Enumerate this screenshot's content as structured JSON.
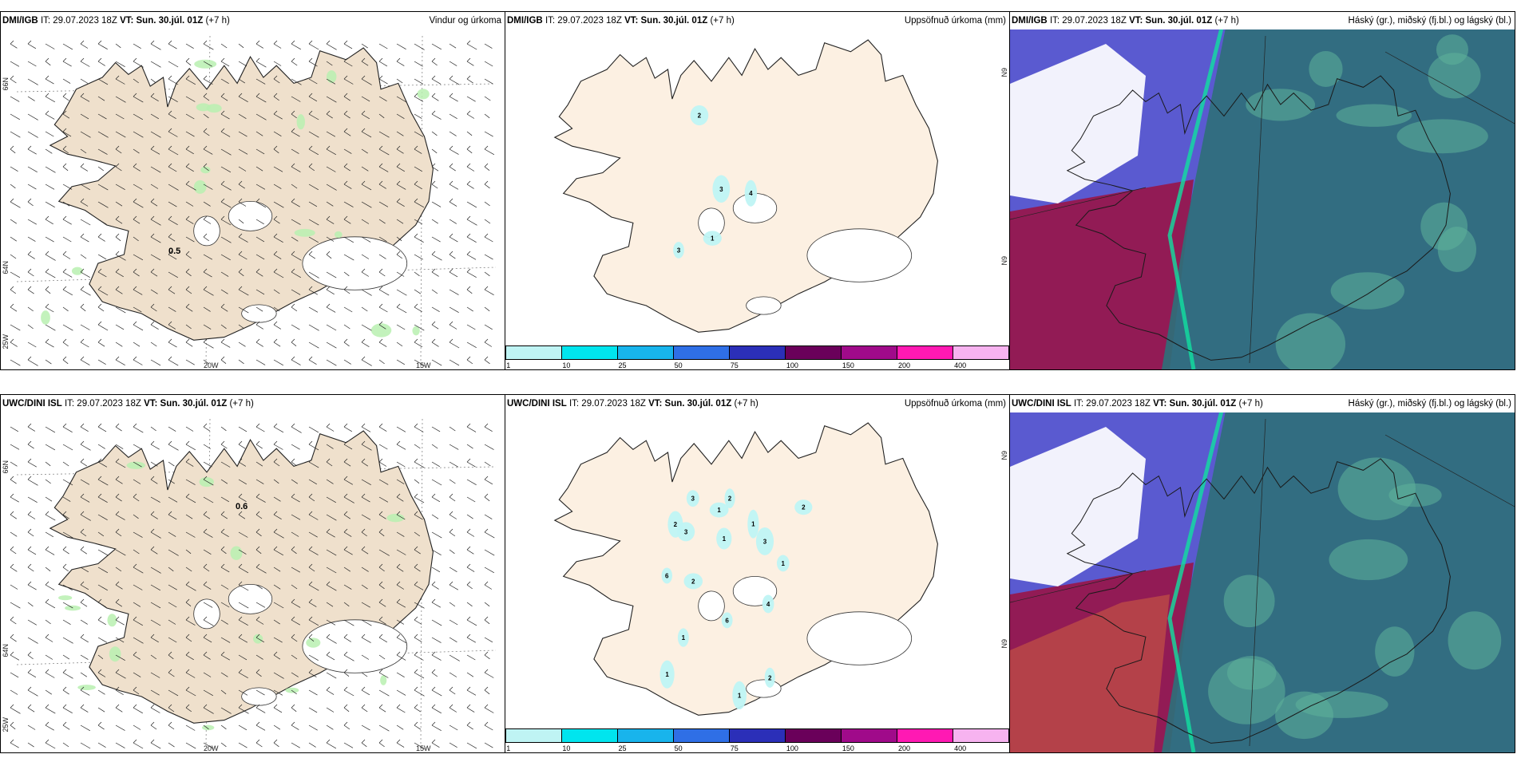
{
  "colors": {
    "land": "#efe0cc",
    "land_precip": "#fcf0e2",
    "glacier": "#ffffff",
    "rain_green": "#b8f0b0",
    "cloud_high": "#3a9a7a",
    "cloud_mid": "#9c1040",
    "cloud_low": "#4a4ac8"
  },
  "legend": {
    "ticks": [
      "1",
      "10",
      "25",
      "50",
      "75",
      "100",
      "150",
      "200",
      "400"
    ],
    "colors": [
      "#bff4f4",
      "#00e5ee",
      "#18b4ec",
      "#2f6fe6",
      "#2b2fb8",
      "#6a005a",
      "#a00a8a",
      "#ff19b3",
      "#f7b3f0"
    ]
  },
  "rows": [
    {
      "source": "DMI/IGB",
      "it_label": "IT:",
      "it_value": "29.07.2023 18Z",
      "vt_label": "VT:",
      "vt_value": "Sun. 30.júl. 01Z",
      "lead": "(+7 h)",
      "wind_title": "Vindur og úrkoma",
      "precip_title": "Uppsöfnuð úrkoma (mm)",
      "cloud_title": "Háský (gr.), miðský (fj.bl.) og lágský (bl.)",
      "wind_max_label": "0.5",
      "precip_labels": [
        "2",
        "3",
        "3",
        "4",
        "1"
      ]
    },
    {
      "source": "UWC/DINI ISL",
      "it_label": "IT:",
      "it_value": "29.07.2023 18Z",
      "vt_label": "VT:",
      "vt_value": "Sun. 30.júl. 01Z",
      "lead": "(+7 h)",
      "wind_title": "",
      "precip_title": "Uppsöfnuð úrkoma (mm)",
      "cloud_title": "Háský (gr.), miðský (fj.bl.) og lágský (bl.)",
      "wind_max_label": "0.6",
      "precip_labels": [
        "1",
        "1",
        "4",
        "1",
        "6",
        "2",
        "2",
        "3",
        "3",
        "3",
        "1",
        "1",
        "6",
        "1",
        "1",
        "2",
        "2",
        "2"
      ]
    }
  ],
  "axis_labels": {
    "lat_66": "66N",
    "lat_64": "64N",
    "lon_25": "25W",
    "lon_20": "20W",
    "lon_15": "15W",
    "lon_9": "N9"
  }
}
